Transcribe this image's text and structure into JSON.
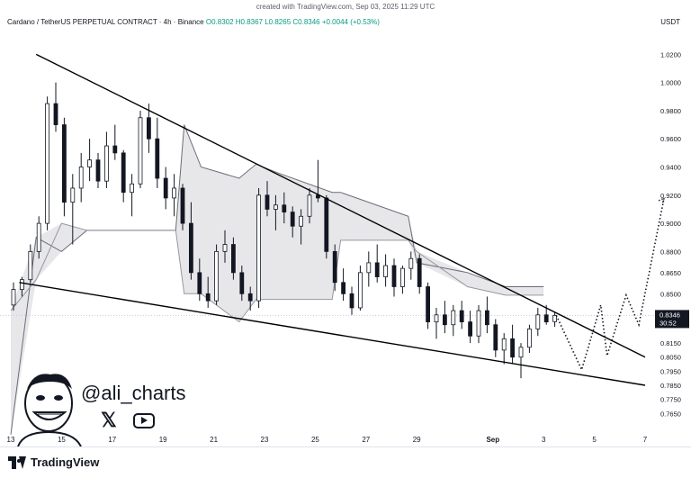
{
  "credit": "created with TradingView.com, Sep 03, 2025 11:29 UTC",
  "header": {
    "symbol": "Cardano / TetherUS PERPETUAL CONTRACT · 4h · Binance",
    "ohlc": "O0.8302  H0.8367  L0.8265  C0.8346  +0.0044 (+0.53%)"
  },
  "currency": "USDT",
  "price_badge": {
    "price": "0.8346",
    "timer": "30:52"
  },
  "watermark": {
    "handle": "@ali_charts",
    "icons": [
      "face-caricature-icon",
      "x-logo-icon",
      "youtube-icon"
    ]
  },
  "footer": {
    "logo": "TradingView"
  },
  "colors": {
    "up": "#131722",
    "down": "#131722",
    "cloud": "#e3e3e6",
    "trendline": "#000000",
    "current_price_badge": "#131722"
  },
  "chart_data": {
    "type": "candlestick",
    "y_axis_ticks": [
      "1.0200",
      "1.0000",
      "0.9800",
      "0.9600",
      "0.9400",
      "0.9200",
      "0.9000",
      "0.8800",
      "0.8650",
      "0.8500",
      "0.8300",
      "0.8150",
      "0.8050",
      "0.7950",
      "0.7850",
      "0.7750",
      "0.7650"
    ],
    "x_axis_ticks": [
      "13",
      "15",
      "17",
      "19",
      "21",
      "23",
      "25",
      "27",
      "29",
      "Sep",
      "3",
      "5",
      "7"
    ],
    "x_domain": [
      "Aug 13",
      "Sep 07"
    ],
    "current_price": 0.8346,
    "trendlines": [
      {
        "name": "upper",
        "from": [
          "Aug 14 00:00",
          1.02
        ],
        "to": [
          "Sep 07 00:00",
          0.805
        ]
      },
      {
        "name": "lower",
        "from": [
          "Aug 13 08:00",
          0.858
        ],
        "to": [
          "Sep 07 00:00",
          0.785
        ]
      }
    ],
    "projection": [
      [
        "Sep 03 12:00",
        0.8346
      ],
      [
        "Sep 04 12:00",
        0.796
      ],
      [
        "Sep 05 06:00",
        0.842
      ],
      [
        "Sep 05 12:00",
        0.806
      ],
      [
        "Sep 06 06:00",
        0.849
      ],
      [
        "Sep 06 18:00",
        0.828
      ],
      [
        "Sep 07 18:00",
        0.918
      ]
    ],
    "cloud": [
      [
        "Aug 13 00:00",
        0.75,
        0.838
      ],
      [
        "Aug 14 00:00",
        0.89,
        0.86
      ],
      [
        "Aug 15 00:00",
        0.88,
        0.9
      ],
      [
        "Aug 16 00:00",
        0.895,
        0.895
      ],
      [
        "Aug 19 12:00",
        0.895,
        0.895
      ],
      [
        "Aug 19 20:00",
        0.97,
        0.85
      ],
      [
        "Aug 20 12:00",
        0.94,
        0.85
      ],
      [
        "Aug 22 00:00",
        0.932,
        0.83
      ],
      [
        "Aug 22 16:00",
        0.942,
        0.846
      ],
      [
        "Aug 23 12:00",
        0.936,
        0.846
      ],
      [
        "Aug 25 16:00",
        0.922,
        0.846
      ],
      [
        "Aug 26 00:00",
        0.922,
        0.888
      ],
      [
        "Aug 28 16:00",
        0.905,
        0.888
      ],
      [
        "Aug 29 00:00",
        0.872,
        0.88
      ],
      [
        "Aug 31 00:00",
        0.865,
        0.855
      ],
      [
        "Sep 01 12:00",
        0.855,
        0.849
      ],
      [
        "Sep 03 00:00",
        0.855,
        0.849
      ]
    ],
    "candles": [
      [
        "Aug 13 00:00",
        0.842,
        0.858,
        0.838,
        0.853
      ],
      [
        "Aug 13 08:00",
        0.853,
        0.862,
        0.848,
        0.86
      ],
      [
        "Aug 13 16:00",
        0.86,
        0.885,
        0.858,
        0.88
      ],
      [
        "Aug 14 00:00",
        0.88,
        0.905,
        0.875,
        0.9
      ],
      [
        "Aug 14 08:00",
        0.9,
        0.99,
        0.895,
        0.985
      ],
      [
        "Aug 14 16:00",
        0.985,
        1.0,
        0.965,
        0.97
      ],
      [
        "Aug 15 00:00",
        0.97,
        0.975,
        0.905,
        0.915
      ],
      [
        "Aug 15 08:00",
        0.915,
        0.935,
        0.885,
        0.925
      ],
      [
        "Aug 15 16:00",
        0.925,
        0.95,
        0.915,
        0.94
      ],
      [
        "Aug 16 00:00",
        0.94,
        0.96,
        0.93,
        0.945
      ],
      [
        "Aug 16 08:00",
        0.945,
        0.95,
        0.925,
        0.93
      ],
      [
        "Aug 16 16:00",
        0.93,
        0.965,
        0.925,
        0.955
      ],
      [
        "Aug 17 00:00",
        0.955,
        0.97,
        0.945,
        0.95
      ],
      [
        "Aug 17 08:00",
        0.95,
        0.952,
        0.915,
        0.922
      ],
      [
        "Aug 17 16:00",
        0.922,
        0.935,
        0.905,
        0.928
      ],
      [
        "Aug 18 00:00",
        0.928,
        0.98,
        0.925,
        0.975
      ],
      [
        "Aug 18 08:00",
        0.975,
        0.985,
        0.95,
        0.96
      ],
      [
        "Aug 18 16:00",
        0.96,
        0.975,
        0.925,
        0.932
      ],
      [
        "Aug 19 00:00",
        0.932,
        0.94,
        0.91,
        0.918
      ],
      [
        "Aug 19 08:00",
        0.918,
        0.935,
        0.905,
        0.925
      ],
      [
        "Aug 19 16:00",
        0.925,
        0.928,
        0.895,
        0.9
      ],
      [
        "Aug 20 00:00",
        0.9,
        0.915,
        0.86,
        0.865
      ],
      [
        "Aug 20 08:00",
        0.865,
        0.875,
        0.845,
        0.85
      ],
      [
        "Aug 20 16:00",
        0.85,
        0.862,
        0.84,
        0.845
      ],
      [
        "Aug 21 00:00",
        0.845,
        0.885,
        0.842,
        0.88
      ],
      [
        "Aug 21 08:00",
        0.88,
        0.895,
        0.872,
        0.885
      ],
      [
        "Aug 21 16:00",
        0.885,
        0.89,
        0.86,
        0.865
      ],
      [
        "Aug 22 00:00",
        0.865,
        0.87,
        0.845,
        0.85
      ],
      [
        "Aug 22 08:00",
        0.85,
        0.855,
        0.838,
        0.845
      ],
      [
        "Aug 22 16:00",
        0.845,
        0.925,
        0.84,
        0.92
      ],
      [
        "Aug 23 00:00",
        0.92,
        0.93,
        0.905,
        0.91
      ],
      [
        "Aug 23 08:00",
        0.91,
        0.92,
        0.895,
        0.913
      ],
      [
        "Aug 23 16:00",
        0.913,
        0.922,
        0.9,
        0.908
      ],
      [
        "Aug 24 00:00",
        0.908,
        0.912,
        0.89,
        0.898
      ],
      [
        "Aug 24 08:00",
        0.898,
        0.91,
        0.885,
        0.905
      ],
      [
        "Aug 24 16:00",
        0.905,
        0.925,
        0.9,
        0.92
      ],
      [
        "Aug 25 00:00",
        0.92,
        0.945,
        0.915,
        0.918
      ],
      [
        "Aug 25 08:00",
        0.918,
        0.92,
        0.875,
        0.88
      ],
      [
        "Aug 25 16:00",
        0.88,
        0.885,
        0.852,
        0.858
      ],
      [
        "Aug 26 00:00",
        0.858,
        0.868,
        0.845,
        0.85
      ],
      [
        "Aug 26 08:00",
        0.85,
        0.855,
        0.835,
        0.84
      ],
      [
        "Aug 26 16:00",
        0.84,
        0.87,
        0.838,
        0.865
      ],
      [
        "Aug 27 00:00",
        0.865,
        0.88,
        0.855,
        0.872
      ],
      [
        "Aug 27 08:00",
        0.872,
        0.885,
        0.858,
        0.862
      ],
      [
        "Aug 27 16:00",
        0.862,
        0.878,
        0.855,
        0.87
      ],
      [
        "Aug 28 00:00",
        0.87,
        0.875,
        0.848,
        0.855
      ],
      [
        "Aug 28 08:00",
        0.855,
        0.87,
        0.85,
        0.868
      ],
      [
        "Aug 28 16:00",
        0.868,
        0.88,
        0.86,
        0.875
      ],
      [
        "Aug 29 00:00",
        0.875,
        0.878,
        0.85,
        0.855
      ],
      [
        "Aug 29 08:00",
        0.855,
        0.858,
        0.825,
        0.83
      ],
      [
        "Aug 29 16:00",
        0.83,
        0.84,
        0.818,
        0.835
      ],
      [
        "Aug 30 00:00",
        0.835,
        0.845,
        0.822,
        0.828
      ],
      [
        "Aug 30 08:00",
        0.828,
        0.842,
        0.82,
        0.838
      ],
      [
        "Aug 30 16:00",
        0.838,
        0.845,
        0.825,
        0.83
      ],
      [
        "Aug 31 00:00",
        0.83,
        0.838,
        0.815,
        0.82
      ],
      [
        "Aug 31 08:00",
        0.82,
        0.842,
        0.815,
        0.838
      ],
      [
        "Aug 31 16:00",
        0.838,
        0.848,
        0.822,
        0.828
      ],
      [
        "Sep 01 00:00",
        0.828,
        0.832,
        0.805,
        0.81
      ],
      [
        "Sep 01 08:00",
        0.81,
        0.822,
        0.8,
        0.818
      ],
      [
        "Sep 01 16:00",
        0.818,
        0.828,
        0.8,
        0.805
      ],
      [
        "Sep 02 00:00",
        0.805,
        0.815,
        0.79,
        0.812
      ],
      [
        "Sep 02 08:00",
        0.812,
        0.828,
        0.808,
        0.825
      ],
      [
        "Sep 02 16:00",
        0.825,
        0.84,
        0.82,
        0.835
      ],
      [
        "Sep 03 00:00",
        0.835,
        0.842,
        0.828,
        0.83
      ],
      [
        "Sep 03 08:00",
        0.8302,
        0.8367,
        0.8265,
        0.8346
      ]
    ]
  }
}
